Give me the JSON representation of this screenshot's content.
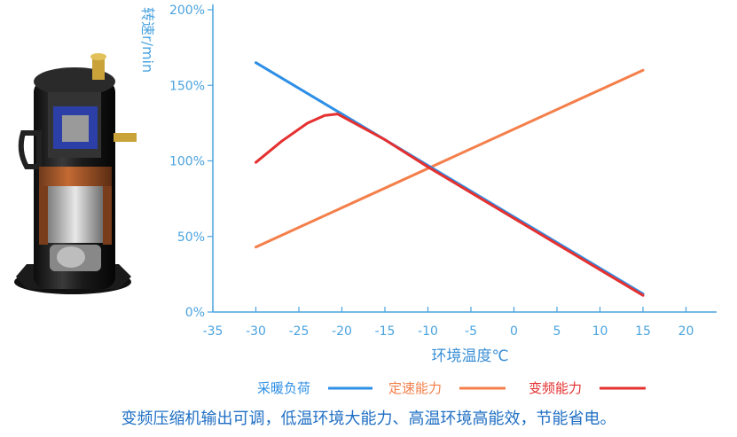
{
  "chart_data": {
    "type": "line",
    "xlabel": "环境温度℃",
    "ylabel": "转速r/min",
    "xlim": [
      -35,
      20
    ],
    "ylim": [
      0,
      200
    ],
    "x_ticks": [
      "-35",
      "-30",
      "-25",
      "-20",
      "-15",
      "-10",
      "-5",
      "0",
      "5",
      "10",
      "15",
      "20"
    ],
    "y_ticks": [
      "0%",
      "50%",
      "100%",
      "150%",
      "200%"
    ],
    "grid": false,
    "legend_position": "bottom",
    "series": [
      {
        "name": "采暖负荷",
        "color": "#2e8fe6",
        "points": [
          [
            -30,
            165
          ],
          [
            -20,
            131
          ],
          [
            -10,
            97
          ],
          [
            0,
            63
          ],
          [
            15,
            12
          ]
        ]
      },
      {
        "name": "定速能力",
        "color": "#f47f4a",
        "points": [
          [
            -30,
            43
          ],
          [
            15,
            160
          ]
        ]
      },
      {
        "name": "变频能力",
        "color": "#e53030",
        "points": [
          [
            -30,
            99
          ],
          [
            -27,
            113
          ],
          [
            -24,
            125
          ],
          [
            -22,
            130
          ],
          [
            -20.5,
            131
          ],
          [
            -15,
            114
          ],
          [
            -10,
            96
          ],
          [
            -5,
            79
          ],
          [
            0,
            62
          ],
          [
            5,
            45
          ],
          [
            10,
            28
          ],
          [
            15,
            11
          ]
        ]
      }
    ]
  },
  "illustration": {
    "icon": "scroll-compressor-cutaway-icon"
  },
  "caption": "变频压缩机输出可调，低温环境大能力、高温环境高能效，节能省电。"
}
